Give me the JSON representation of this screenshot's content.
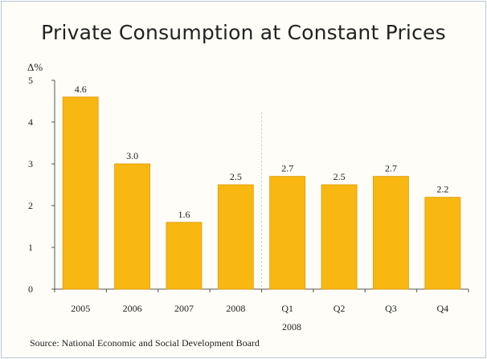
{
  "chart_data": {
    "type": "bar",
    "title": "Private Consumption at Constant Prices",
    "ylabel": "Δ%",
    "xlabel": "",
    "categories": [
      "2005",
      "2006",
      "2007",
      "2008",
      "Q1",
      "Q2",
      "Q3",
      "Q4"
    ],
    "values": [
      4.6,
      3.0,
      1.6,
      2.5,
      2.7,
      2.5,
      2.7,
      2.2
    ],
    "value_labels": [
      "4.6",
      "3.0",
      "1.6",
      "2.5",
      "2.7",
      "2.5",
      "2.7",
      "2.2"
    ],
    "group_label": "2008",
    "ylim": [
      0,
      5
    ],
    "yticks": [
      "0",
      "1",
      "2",
      "3",
      "4",
      "5"
    ],
    "grid": false,
    "legend": "none",
    "bar_color": "#f9b712",
    "bar_edge_color": "#e09a00"
  },
  "source": "Source: National Economic and Social Development Board"
}
